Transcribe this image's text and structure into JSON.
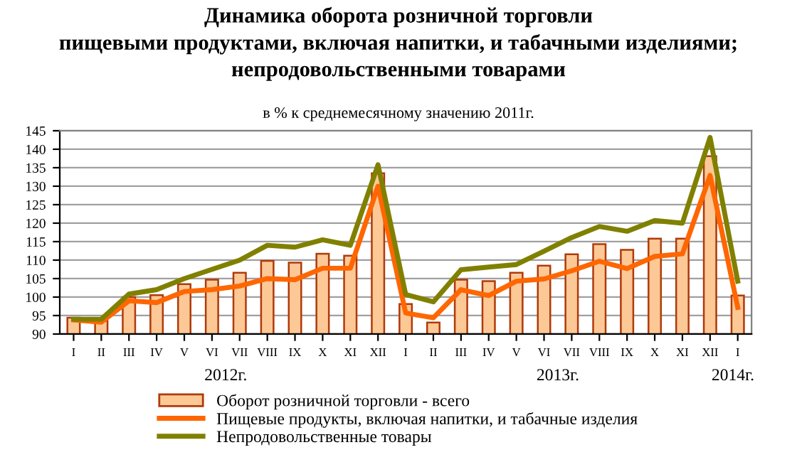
{
  "chart_data": {
    "type": "bar",
    "title": "Динамика оборота розничной торговли\nпищевыми продуктами, включая напитки, и табачными изделиями;\nнепродовольственными товарами",
    "subtitle": "в % к среднемесячному значению 2011г.",
    "categories": [
      "I",
      "II",
      "III",
      "IV",
      "V",
      "VI",
      "VII",
      "VIII",
      "IX",
      "X",
      "XI",
      "XII",
      "I",
      "II",
      "III",
      "IV",
      "V",
      "VI",
      "VII",
      "VIII",
      "IX",
      "X",
      "XI",
      "XII",
      "I"
    ],
    "series": [
      {
        "name": "Оборот розничной торговли - всего",
        "color": "#fcc896",
        "values": [
          94.4,
          93.6,
          100,
          100.5,
          103.5,
          104.7,
          106.6,
          109.8,
          109.3,
          111.7,
          111.2,
          133.5,
          98.1,
          93.1,
          104.7,
          104.3,
          106.6,
          108.5,
          111.6,
          114.3,
          112.8,
          115.8,
          115.8,
          138.1,
          100.4
        ]
      },
      {
        "name": "Пищевые продукты, включая напитки, и табачные изделия",
        "type": "line",
        "color": "#ff6600",
        "values": [
          93.8,
          93.2,
          99,
          98.5,
          101.5,
          102,
          103,
          105,
          104.7,
          107.8,
          107.8,
          130,
          95.7,
          94.4,
          102,
          100.4,
          104.3,
          104.9,
          107.1,
          109.7,
          107.7,
          111,
          111.7,
          132.9,
          97.2
        ]
      },
      {
        "name": "Непродовольственные товары",
        "type": "line",
        "color": "#808000",
        "values": [
          94,
          94,
          100.8,
          102,
          105,
          107.5,
          110,
          114,
          113.5,
          115.5,
          114,
          135.8,
          100.7,
          98.7,
          107.4,
          108.1,
          108.8,
          112.4,
          116.1,
          119.1,
          117.8,
          120.7,
          120,
          143.2,
          104.3
        ]
      }
    ],
    "ylim": [
      90,
      145
    ],
    "yticks": [
      90,
      95,
      100,
      105,
      110,
      115,
      120,
      125,
      130,
      135,
      140,
      145
    ],
    "grid": "y",
    "legend": "bottom",
    "marker": "none",
    "line_style": "solid",
    "annotations": [
      "2012г.",
      "2013г.",
      "2014г."
    ]
  }
}
